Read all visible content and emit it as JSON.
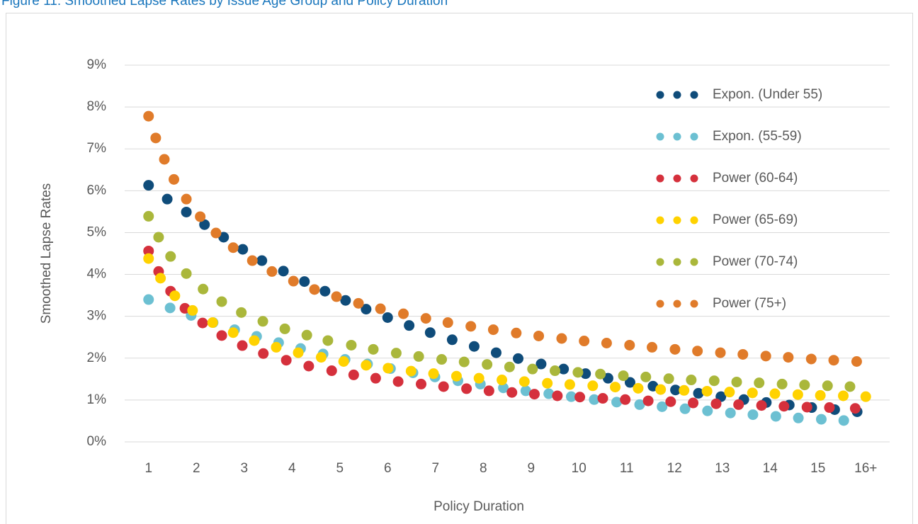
{
  "chart_data": {
    "type": "scatter",
    "title": "Figure 11: Smoothed Lapse Rates by Issue Age Group and Policy Duration",
    "x_label": "Policy Duration",
    "y_label": "Smoothed Lapse Rates",
    "xlim": [
      0.5,
      16.5
    ],
    "xticks": [
      1,
      2,
      3,
      4,
      5,
      6,
      7,
      8,
      9,
      10,
      11,
      12,
      13,
      14,
      15,
      {
        "value": 16,
        "label": "16+"
      }
    ],
    "ylim": [
      0,
      9
    ],
    "yticks": [
      {
        "value": 0,
        "label": "0%"
      },
      {
        "value": 1,
        "label": "1%"
      },
      {
        "value": 2,
        "label": "2%"
      },
      {
        "value": 3,
        "label": "3%"
      },
      {
        "value": 4,
        "label": "4%"
      },
      {
        "value": 5,
        "label": "5%"
      },
      {
        "value": 6,
        "label": "6%"
      },
      {
        "value": 7,
        "label": "7%"
      },
      {
        "value": 8,
        "label": "8%"
      },
      {
        "value": 9,
        "label": "9%"
      }
    ],
    "grid": true,
    "legend": "upper right",
    "series": [
      {
        "name": "Expon. (Under 55)",
        "color": "#0f4c7a",
        "x": [
          1,
          1.39,
          1.79,
          2.17,
          2.57,
          2.97,
          3.37,
          3.82,
          4.26,
          4.69,
          5.12,
          5.55,
          6.0,
          6.45,
          6.89,
          7.35,
          7.81,
          8.27,
          8.73,
          9.21,
          9.68,
          10.14,
          10.61,
          11.07,
          11.55,
          12.02,
          12.5,
          12.97,
          13.45,
          13.92,
          14.4,
          14.87,
          15.35,
          15.82
        ],
        "values": [
          6.13,
          5.8,
          5.49,
          5.19,
          4.89,
          4.6,
          4.33,
          4.08,
          3.83,
          3.6,
          3.38,
          3.17,
          2.97,
          2.78,
          2.61,
          2.44,
          2.28,
          2.13,
          1.99,
          1.86,
          1.74,
          1.63,
          1.52,
          1.42,
          1.33,
          1.24,
          1.16,
          1.08,
          1.01,
          0.94,
          0.88,
          0.82,
          0.77,
          0.72
        ]
      },
      {
        "name": "Expon. (55-59)",
        "color": "#6cc0d2",
        "x": [
          1,
          1.45,
          1.89,
          2.35,
          2.8,
          3.26,
          3.72,
          4.18,
          4.65,
          5.11,
          5.58,
          6.06,
          6.53,
          6.99,
          7.47,
          7.94,
          8.42,
          8.89,
          9.37,
          9.84,
          10.32,
          10.79,
          11.27,
          11.74,
          12.22,
          12.69,
          13.17,
          13.64,
          14.12,
          14.59,
          15.07,
          15.54
        ],
        "values": [
          3.4,
          3.2,
          3.02,
          2.85,
          2.68,
          2.52,
          2.37,
          2.23,
          2.1,
          1.97,
          1.86,
          1.75,
          1.65,
          1.55,
          1.46,
          1.38,
          1.29,
          1.22,
          1.15,
          1.08,
          1.01,
          0.95,
          0.89,
          0.84,
          0.79,
          0.74,
          0.69,
          0.65,
          0.61,
          0.57,
          0.54,
          0.51
        ]
      },
      {
        "name": "Power (60-64)",
        "color": "#d5303c",
        "x": [
          1,
          1.21,
          1.46,
          1.76,
          2.13,
          2.53,
          2.96,
          3.4,
          3.88,
          4.35,
          4.83,
          5.29,
          5.75,
          6.22,
          6.7,
          7.17,
          7.65,
          8.12,
          8.6,
          9.07,
          9.55,
          10.02,
          10.5,
          10.97,
          11.45,
          11.92,
          12.39,
          12.87,
          13.34,
          13.82,
          14.29,
          14.77,
          15.24,
          15.78
        ],
        "values": [
          4.56,
          4.07,
          3.6,
          3.19,
          2.84,
          2.54,
          2.3,
          2.11,
          1.95,
          1.81,
          1.7,
          1.6,
          1.52,
          1.44,
          1.38,
          1.32,
          1.27,
          1.22,
          1.18,
          1.14,
          1.1,
          1.07,
          1.04,
          1.01,
          0.98,
          0.96,
          0.93,
          0.91,
          0.89,
          0.87,
          0.85,
          0.83,
          0.82,
          0.8
        ]
      },
      {
        "name": "Power (65-69)",
        "color": "#ffd200",
        "x": [
          1,
          1.25,
          1.55,
          1.92,
          2.34,
          2.77,
          3.21,
          3.67,
          4.13,
          4.61,
          5.08,
          5.55,
          6.01,
          6.49,
          6.96,
          7.44,
          7.91,
          8.39,
          8.86,
          9.34,
          9.81,
          10.29,
          10.76,
          11.24,
          11.71,
          12.2,
          12.68,
          13.15,
          13.63,
          14.1,
          14.58,
          15.05,
          15.53,
          16.0
        ],
        "values": [
          4.38,
          3.91,
          3.49,
          3.14,
          2.85,
          2.61,
          2.42,
          2.26,
          2.13,
          2.02,
          1.92,
          1.83,
          1.76,
          1.69,
          1.63,
          1.57,
          1.52,
          1.48,
          1.44,
          1.4,
          1.37,
          1.34,
          1.31,
          1.28,
          1.25,
          1.23,
          1.21,
          1.19,
          1.17,
          1.15,
          1.13,
          1.11,
          1.1,
          1.08
        ]
      },
      {
        "name": "Power (70-74)",
        "color": "#aab73b",
        "x": [
          1,
          1.21,
          1.46,
          1.79,
          2.14,
          2.53,
          2.94,
          3.39,
          3.85,
          4.31,
          4.75,
          5.24,
          5.7,
          6.18,
          6.65,
          7.13,
          7.6,
          8.08,
          8.55,
          9.03,
          9.5,
          9.98,
          10.45,
          10.93,
          11.4,
          11.88,
          12.35,
          12.83,
          13.3,
          13.77,
          14.25,
          14.72,
          15.2,
          15.67
        ],
        "values": [
          5.39,
          4.89,
          4.43,
          4.02,
          3.65,
          3.35,
          3.09,
          2.88,
          2.7,
          2.55,
          2.42,
          2.31,
          2.21,
          2.12,
          2.04,
          1.97,
          1.91,
          1.85,
          1.79,
          1.74,
          1.7,
          1.66,
          1.62,
          1.58,
          1.55,
          1.51,
          1.48,
          1.46,
          1.43,
          1.41,
          1.38,
          1.36,
          1.34,
          1.32
        ]
      },
      {
        "name": "Power (75+)",
        "color": "#e07b2a",
        "x": [
          1,
          1.15,
          1.33,
          1.53,
          1.79,
          2.08,
          2.41,
          2.77,
          3.17,
          3.58,
          4.03,
          4.47,
          4.93,
          5.39,
          5.85,
          6.33,
          6.8,
          7.26,
          7.74,
          8.21,
          8.69,
          9.16,
          9.64,
          10.11,
          10.58,
          11.06,
          11.53,
          12.01,
          12.48,
          12.96,
          13.43,
          13.91,
          14.38,
          14.86,
          15.33,
          15.81
        ],
        "values": [
          7.78,
          7.26,
          6.75,
          6.27,
          5.8,
          5.38,
          4.99,
          4.64,
          4.33,
          4.07,
          3.84,
          3.64,
          3.47,
          3.31,
          3.18,
          3.06,
          2.95,
          2.85,
          2.76,
          2.68,
          2.6,
          2.53,
          2.47,
          2.41,
          2.36,
          2.31,
          2.26,
          2.21,
          2.17,
          2.13,
          2.09,
          2.05,
          2.02,
          1.98,
          1.95,
          1.92
        ]
      }
    ]
  }
}
